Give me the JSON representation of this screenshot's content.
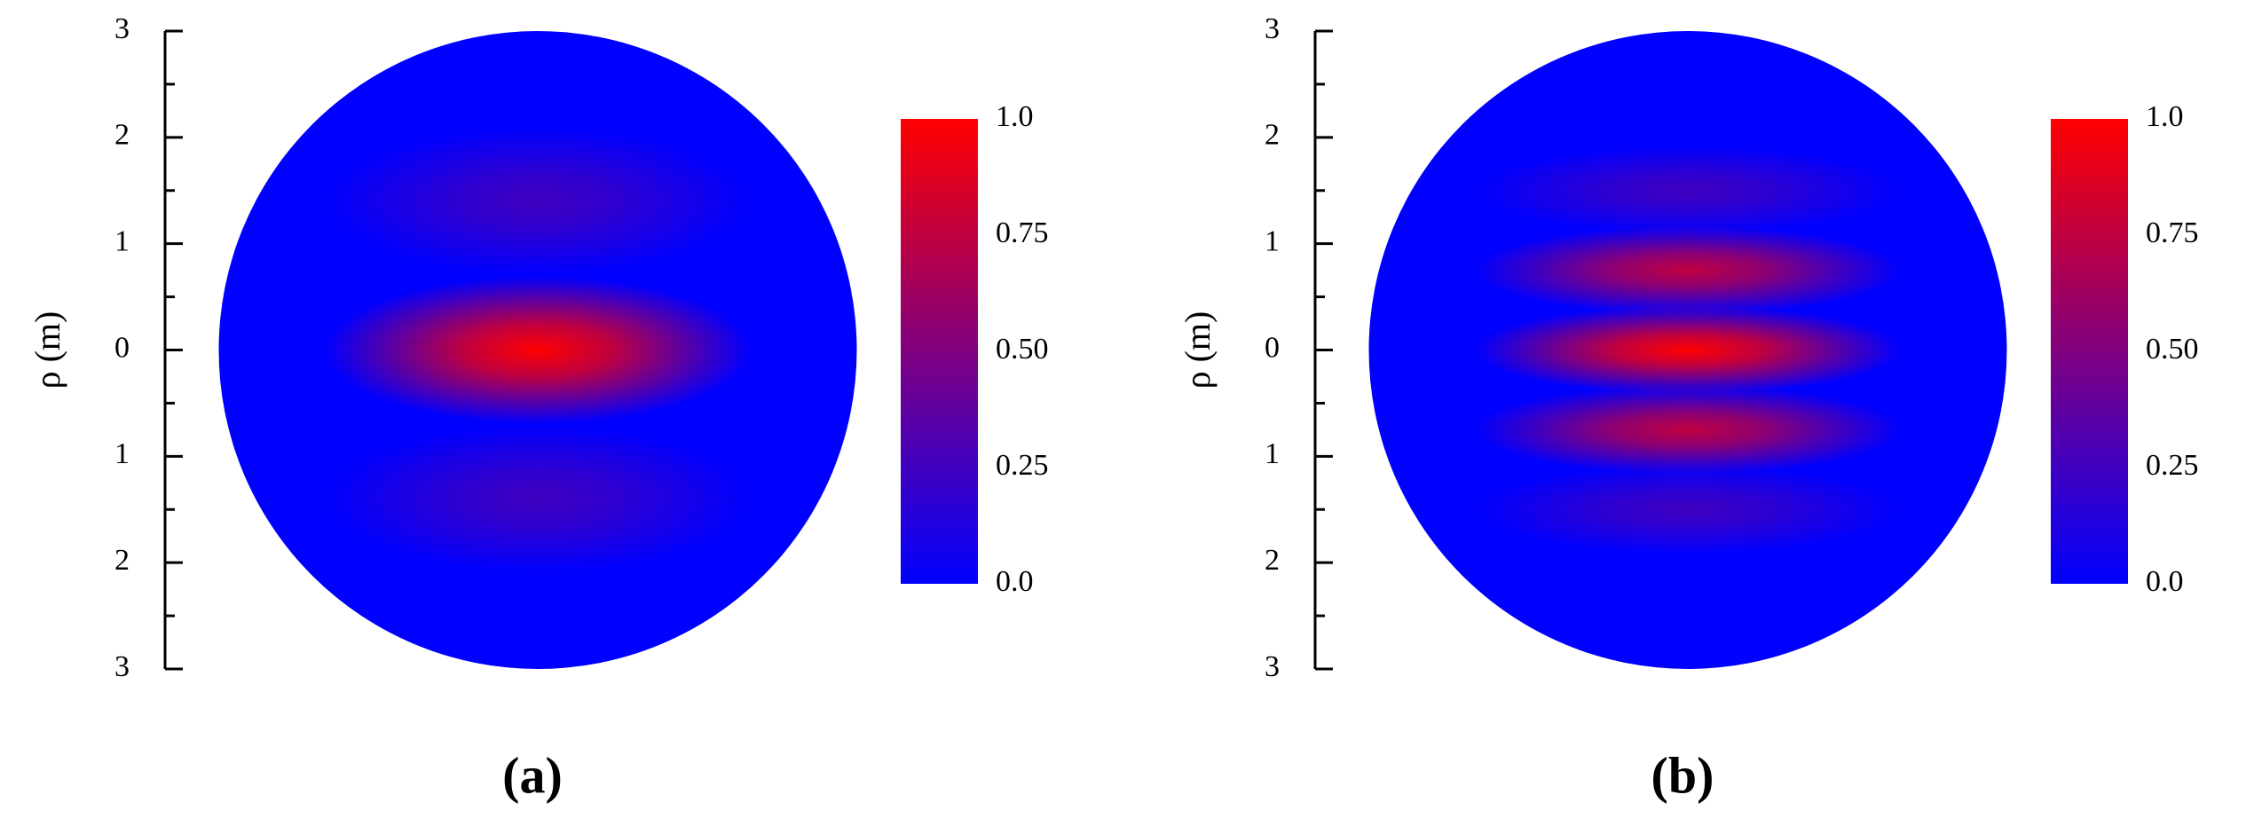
{
  "chart_data": [
    {
      "type": "heatmap",
      "label": "(a)",
      "ylabel": "ρ (m)",
      "ylim": [
        -3,
        3
      ],
      "yticks": [
        {
          "value": 3,
          "label": "3"
        },
        {
          "value": 2,
          "label": "2"
        },
        {
          "value": 1,
          "label": "1"
        },
        0,
        {
          "value": -1,
          "label": "1"
        },
        {
          "value": -2,
          "label": "2"
        },
        {
          "value": -3,
          "label": "3"
        }
      ],
      "blobs": [
        {
          "y": 1.4,
          "value": 0.25
        },
        {
          "y": 0,
          "value": 1.0
        },
        {
          "y": -1.4,
          "value": 0.25
        }
      ],
      "colorbar": {
        "lim": [
          0,
          1
        ],
        "ticks": [
          {
            "value": 1,
            "label": "1.0"
          },
          0.75,
          {
            "value": 0.5,
            "label": "0.50"
          },
          0.25,
          {
            "value": 0,
            "label": "0.0"
          }
        ],
        "colors": [
          "#0000ff",
          "#ff0000"
        ]
      }
    },
    {
      "type": "heatmap",
      "label": "(b)",
      "ylabel": "ρ (m)",
      "ylim": [
        -3,
        3
      ],
      "yticks": [
        {
          "value": 3,
          "label": "3"
        },
        {
          "value": 2,
          "label": "2"
        },
        {
          "value": 1,
          "label": "1"
        },
        0,
        {
          "value": -1,
          "label": "1"
        },
        {
          "value": -2,
          "label": "2"
        },
        {
          "value": -3,
          "label": "3"
        }
      ],
      "blobs": [
        {
          "y": 1.5,
          "value": 0.25
        },
        {
          "y": 0.75,
          "value": 0.75
        },
        {
          "y": 0,
          "value": 1.0
        },
        {
          "y": -0.75,
          "value": 0.75
        },
        {
          "y": -1.5,
          "value": 0.25
        }
      ],
      "colorbar": {
        "lim": [
          0,
          1
        ],
        "ticks": [
          {
            "value": 1,
            "label": "1.0"
          },
          0.75,
          {
            "value": 0.5,
            "label": "0.50"
          },
          0.25,
          {
            "value": 0,
            "label": "0.0"
          }
        ],
        "colors": [
          "#0000ff",
          "#ff0000"
        ]
      }
    }
  ]
}
